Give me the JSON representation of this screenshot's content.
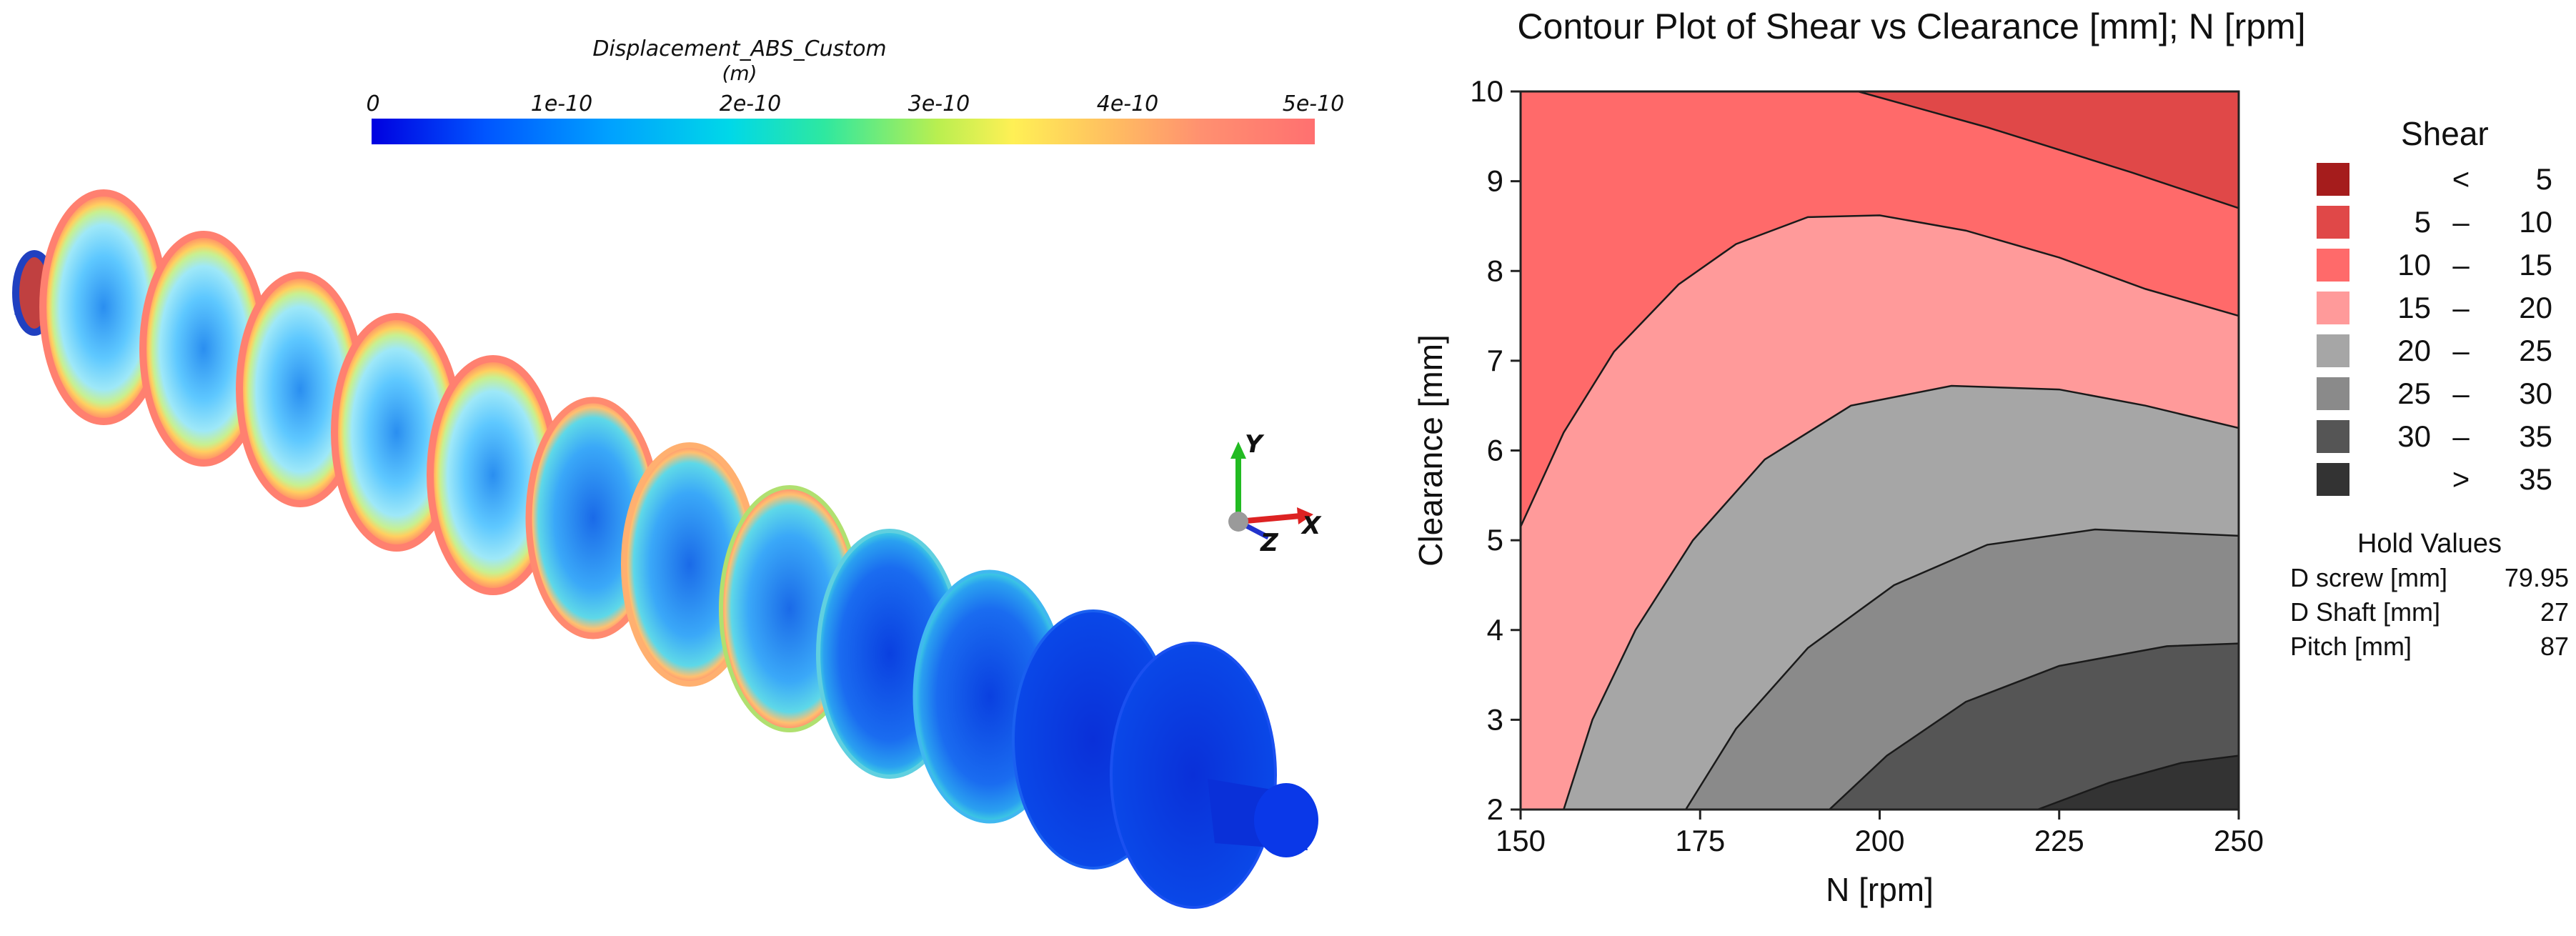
{
  "left_panel": {
    "colorbar": {
      "title": "Displacement_ABS_Custom",
      "unit": "(m)",
      "ticks": [
        "0",
        "1e-10",
        "2e-10",
        "3e-10",
        "4e-10",
        "5e-10"
      ]
    },
    "axes": {
      "y": "Y",
      "x": "X",
      "z": "Z"
    }
  },
  "chart_data": {
    "type": "contour",
    "title": "Contour Plot of Shear vs Clearance [mm]; N [rpm]",
    "xlabel": "N [rpm]",
    "ylabel": "Clearance [mm]",
    "xlim": [
      150,
      250
    ],
    "ylim": [
      2,
      10
    ],
    "xticks": [
      "150",
      "175",
      "200",
      "225",
      "250"
    ],
    "yticks": [
      "2",
      "3",
      "4",
      "5",
      "6",
      "7",
      "8",
      "9",
      "10"
    ],
    "legend_title": "Shear",
    "legend": [
      {
        "low": "",
        "op": "<",
        "high": "5",
        "color": "#a51c1c"
      },
      {
        "low": "5",
        "op": "–",
        "high": "10",
        "color": "#e04848"
      },
      {
        "low": "10",
        "op": "–",
        "high": "15",
        "color": "#ff6a6a"
      },
      {
        "low": "15",
        "op": "–",
        "high": "20",
        "color": "#ff9a9a"
      },
      {
        "low": "20",
        "op": "–",
        "high": "25",
        "color": "#a6a6a6"
      },
      {
        "low": "25",
        "op": "–",
        "high": "30",
        "color": "#8a8a8a"
      },
      {
        "low": "30",
        "op": "–",
        "high": "35",
        "color": "#555555"
      },
      {
        "low": "",
        "op": ">",
        "high": "35",
        "color": "#333333"
      }
    ],
    "contour_lines": [
      {
        "level": 10,
        "points": [
          [
            197,
            10
          ],
          [
            215,
            9.6
          ],
          [
            235,
            9.1
          ],
          [
            250,
            8.7
          ]
        ]
      },
      {
        "level": 15,
        "points": [
          [
            150,
            5.15
          ],
          [
            156,
            6.2
          ],
          [
            163,
            7.1
          ],
          [
            172,
            7.85
          ],
          [
            180,
            8.3
          ],
          [
            190,
            8.6
          ],
          [
            200,
            8.62
          ],
          [
            212,
            8.45
          ],
          [
            225,
            8.15
          ],
          [
            237,
            7.8
          ],
          [
            250,
            7.5
          ]
        ]
      },
      {
        "level": 20,
        "points": [
          [
            156,
            2
          ],
          [
            160,
            3.0
          ],
          [
            166,
            4.0
          ],
          [
            174,
            5.0
          ],
          [
            184,
            5.9
          ],
          [
            196,
            6.5
          ],
          [
            210,
            6.72
          ],
          [
            225,
            6.68
          ],
          [
            237,
            6.5
          ],
          [
            250,
            6.25
          ]
        ]
      },
      {
        "level": 25,
        "points": [
          [
            173,
            2
          ],
          [
            180,
            2.9
          ],
          [
            190,
            3.8
          ],
          [
            202,
            4.5
          ],
          [
            215,
            4.95
          ],
          [
            230,
            5.12
          ],
          [
            250,
            5.05
          ]
        ]
      },
      {
        "level": 30,
        "points": [
          [
            193,
            2
          ],
          [
            201,
            2.6
          ],
          [
            212,
            3.2
          ],
          [
            225,
            3.6
          ],
          [
            240,
            3.82
          ],
          [
            250,
            3.85
          ]
        ]
      },
      {
        "level": 35,
        "points": [
          [
            222,
            2
          ],
          [
            232,
            2.3
          ],
          [
            242,
            2.52
          ],
          [
            250,
            2.6
          ]
        ]
      }
    ]
  },
  "hold_values": {
    "title": "Hold Values",
    "items": [
      {
        "label": "D screw [mm]",
        "value": "79.95"
      },
      {
        "label": "D Shaft [mm]",
        "value": "27"
      },
      {
        "label": "Pitch [mm]",
        "value": "87"
      }
    ]
  }
}
